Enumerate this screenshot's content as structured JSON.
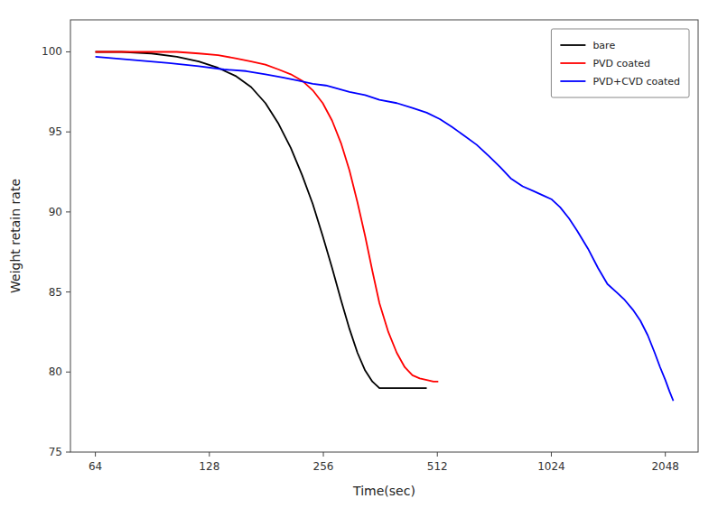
{
  "chart_data": {
    "type": "line",
    "xlabel": "Time(sec)",
    "ylabel": "Weight retain rate",
    "log": "x",
    "grid": false,
    "legend": "upper right",
    "xlim": [
      55,
      2500
    ],
    "ylim": [
      75,
      102
    ],
    "xticks": [
      64,
      128,
      256,
      512,
      1024,
      2048
    ],
    "yticks": [
      75,
      80,
      85,
      90,
      95,
      100
    ],
    "series": [
      {
        "name": "bare",
        "color": "black",
        "x": [
          64,
          75,
          90,
          105,
          120,
          135,
          150,
          165,
          180,
          195,
          210,
          225,
          240,
          255,
          270,
          285,
          300,
          315,
          330,
          345,
          360,
          375,
          390,
          405,
          420,
          440,
          460,
          480
        ],
        "values": [
          100.0,
          100.0,
          99.9,
          99.7,
          99.4,
          99.0,
          98.5,
          97.8,
          96.8,
          95.5,
          94.0,
          92.3,
          90.5,
          88.5,
          86.5,
          84.5,
          82.7,
          81.2,
          80.1,
          79.4,
          79.0,
          79.0,
          79.0,
          79.0,
          79.0,
          79.0,
          79.0,
          79.0
        ]
      },
      {
        "name": "PVD coated",
        "color": "red",
        "x": [
          64,
          75,
          90,
          105,
          120,
          135,
          150,
          165,
          180,
          195,
          210,
          225,
          240,
          255,
          270,
          285,
          300,
          315,
          330,
          345,
          360,
          380,
          400,
          420,
          440,
          460,
          480,
          500,
          515
        ],
        "values": [
          100.0,
          100.0,
          100.0,
          100.0,
          99.9,
          99.8,
          99.6,
          99.4,
          99.2,
          98.9,
          98.6,
          98.2,
          97.6,
          96.8,
          95.7,
          94.3,
          92.6,
          90.6,
          88.5,
          86.3,
          84.3,
          82.5,
          81.2,
          80.3,
          79.8,
          79.6,
          79.5,
          79.4,
          79.4
        ]
      },
      {
        "name": "PVD+CVD coated",
        "color": "blue",
        "x": [
          64,
          80,
          100,
          120,
          140,
          160,
          180,
          200,
          220,
          240,
          260,
          280,
          300,
          330,
          360,
          400,
          440,
          480,
          520,
          560,
          600,
          650,
          700,
          750,
          800,
          860,
          920,
          980,
          1024,
          1080,
          1140,
          1200,
          1280,
          1360,
          1440,
          1520,
          1600,
          1680,
          1760,
          1840,
          1920,
          1984,
          2048,
          2100,
          2150
        ],
        "values": [
          99.7,
          99.5,
          99.3,
          99.1,
          98.9,
          98.8,
          98.6,
          98.4,
          98.2,
          98.0,
          97.9,
          97.7,
          97.5,
          97.3,
          97.0,
          96.8,
          96.5,
          96.2,
          95.8,
          95.3,
          94.8,
          94.2,
          93.5,
          92.8,
          92.1,
          91.6,
          91.3,
          91.0,
          90.8,
          90.3,
          89.6,
          88.8,
          87.7,
          86.5,
          85.5,
          85.0,
          84.5,
          83.9,
          83.2,
          82.3,
          81.2,
          80.3,
          79.5,
          78.8,
          78.2
        ]
      }
    ]
  }
}
